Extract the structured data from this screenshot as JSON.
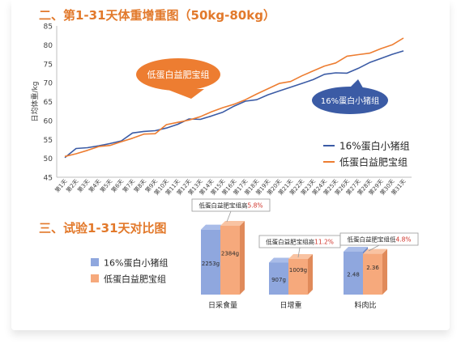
{
  "section1": {
    "title": "二、第1-31天体重增重图（50kg-80kg）"
  },
  "section2": {
    "title": "三、试验1-31天对比图"
  },
  "colors": {
    "blue": "#3B5BA5",
    "orange": "#ED7D31",
    "title_orange": "#E2792B",
    "highlight_red": "#D0352C",
    "bar_blue": "#8FA7DE",
    "bar_orange": "#F6A97C"
  },
  "chart_data": [
    {
      "type": "line",
      "title": "",
      "ylabel": "日均体重/kg",
      "ylim": [
        45,
        85
      ],
      "yticks": [
        45,
        50,
        55,
        60,
        65,
        70,
        75,
        80,
        85
      ],
      "grid": false,
      "categories": [
        "第1天",
        "第2天",
        "第3天",
        "第4天",
        "第5天",
        "第6天",
        "第7天",
        "第8天",
        "第9天",
        "第10天",
        "第11天",
        "第12天",
        "第13天",
        "第14天",
        "第15天",
        "第16天",
        "第17天",
        "第18天",
        "第19天",
        "第20天",
        "第21天",
        "第22天",
        "第23天",
        "第24天",
        "第25天",
        "第26天",
        "第27天",
        "第28天",
        "第29天",
        "第30天",
        "第31天"
      ],
      "series": [
        {
          "name": "16%蛋白小猪组",
          "color": "#3B5BA5",
          "values": [
            50.2,
            52.6,
            52.8,
            53.3,
            53.9,
            54.6,
            56.7,
            57.1,
            57.3,
            58.0,
            59.0,
            60.4,
            60.3,
            61.2,
            62.2,
            63.8,
            65.1,
            65.5,
            66.8,
            67.8,
            68.8,
            69.8,
            70.8,
            72.2,
            72.6,
            72.5,
            73.8,
            75.3,
            76.4,
            77.5,
            78.4
          ]
        },
        {
          "name": "低蛋白益肥宝组",
          "color": "#ED7D31",
          "values": [
            50.5,
            51.2,
            52.1,
            53.1,
            53.4,
            54.4,
            55.3,
            56.4,
            56.5,
            58.9,
            59.5,
            60.1,
            61.0,
            62.3,
            63.4,
            64.3,
            65.5,
            67.0,
            68.4,
            69.8,
            70.3,
            71.8,
            73.1,
            74.4,
            75.2,
            77.0,
            77.4,
            77.8,
            79.0,
            80.0,
            81.8
          ]
        }
      ],
      "legend": "bottom-right",
      "callouts": [
        {
          "text": "低蛋白益肥宝组",
          "series": "低蛋白益肥宝组"
        },
        {
          "text": "16%蛋白小猪组",
          "series": "16%蛋白小猪组"
        }
      ]
    },
    {
      "type": "bar",
      "title": "",
      "legend": "left",
      "series_names": [
        "16%蛋白小猪组",
        "低蛋白益肥宝组"
      ],
      "groups": [
        {
          "category": "日采食量",
          "values": [
            2253,
            2384
          ],
          "labels": [
            "2253g",
            "2384g"
          ],
          "callout_prefix": "低蛋白益肥宝组高",
          "callout_value": "5.8%"
        },
        {
          "category": "日增重",
          "values": [
            907,
            1009
          ],
          "labels": [
            "907g",
            "1009g"
          ],
          "callout_prefix": "低蛋白益肥宝组高",
          "callout_value": "11.2%"
        },
        {
          "category": "料肉比",
          "values": [
            2.48,
            2.36
          ],
          "labels": [
            "2.48",
            "2.36"
          ],
          "callout_prefix": "低蛋白益肥宝组低",
          "callout_value": "4.8%"
        }
      ]
    }
  ]
}
